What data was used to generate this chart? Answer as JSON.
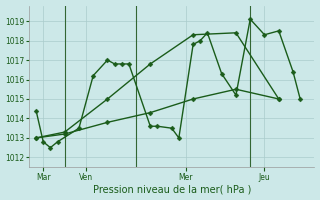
{
  "background_color": "#cce8e8",
  "grid_color": "#aacccc",
  "line_color": "#1a5c1a",
  "xlabel": "Pression niveau de la mer( hPa )",
  "ylim": [
    1011.5,
    1019.8
  ],
  "yticks": [
    1012,
    1013,
    1014,
    1015,
    1016,
    1017,
    1018,
    1019
  ],
  "xlim": [
    0,
    20
  ],
  "day_labels": [
    "Mar",
    "Ven",
    "Mer",
    "Jeu"
  ],
  "day_positions": [
    1,
    4,
    11,
    16.5
  ],
  "vline_x": [
    2.5,
    7.5,
    15.5
  ],
  "series1_x": [
    0.5,
    1.0,
    1.5,
    2.0,
    3.5,
    4.5,
    5.5,
    6.0,
    6.5,
    7.0,
    8.5,
    9.0,
    10.0,
    10.5,
    11.5,
    12.0,
    12.5,
    13.5,
    14.5,
    15.5,
    16.5,
    17.5,
    18.5,
    19.0
  ],
  "series1_y": [
    1014.4,
    1012.8,
    1012.5,
    1012.8,
    1013.5,
    1016.2,
    1017.0,
    1016.8,
    1016.8,
    1016.8,
    1013.6,
    1013.6,
    1013.5,
    1013.0,
    1017.8,
    1018.0,
    1018.4,
    1016.3,
    1015.2,
    1019.1,
    1018.3,
    1018.5,
    1016.4,
    1015.0
  ],
  "series2_x": [
    0.5,
    2.5,
    5.5,
    8.5,
    11.5,
    14.5,
    17.5
  ],
  "series2_y": [
    1013.0,
    1013.2,
    1013.8,
    1014.3,
    1015.0,
    1015.5,
    1015.0
  ],
  "series3_x": [
    0.5,
    2.5,
    5.5,
    8.5,
    11.5,
    14.5,
    17.5
  ],
  "series3_y": [
    1013.0,
    1013.3,
    1015.0,
    1016.8,
    1018.3,
    1018.4,
    1015.0
  ],
  "marker_size": 2.5,
  "linewidth": 1.0,
  "sep_color": "#336633",
  "xlabel_fontsize": 7,
  "tick_labelsize": 5.5
}
